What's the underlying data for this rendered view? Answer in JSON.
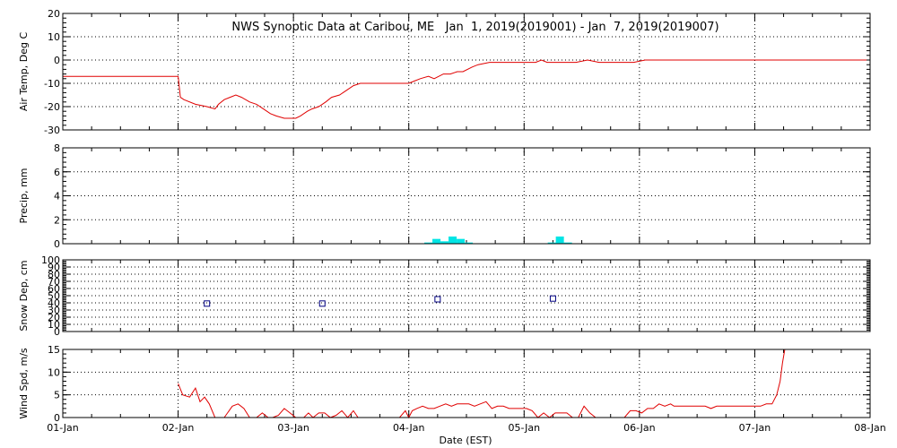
{
  "title": "NWS Synoptic Data at Caribou, ME   Jan  1, 2019(2019001) - Jan  7, 2019(2019007)",
  "chart_data": [
    {
      "type": "line",
      "ylabel": "Air Temp, Deg C",
      "ylim": [
        -30,
        20
      ],
      "yticks": [
        -30,
        -20,
        -10,
        0,
        10,
        20
      ],
      "grid": true,
      "color": "#e00000",
      "x": [
        0,
        0.6,
        1.0,
        1.02,
        1.05,
        1.15,
        1.25,
        1.32,
        1.35,
        1.4,
        1.45,
        1.5,
        1.55,
        1.62,
        1.68,
        1.74,
        1.8,
        1.85,
        1.92,
        1.98,
        2.02,
        2.06,
        2.12,
        2.16,
        2.22,
        2.28,
        2.33,
        2.4,
        2.46,
        2.52,
        2.58,
        2.65,
        2.75,
        2.85,
        2.95,
        3.0,
        3.05,
        3.1,
        3.17,
        3.22,
        3.3,
        3.36,
        3.42,
        3.47,
        3.55,
        3.6,
        3.7,
        3.8,
        3.9,
        4.0,
        4.05,
        4.1,
        4.15,
        4.2,
        4.25,
        4.35,
        4.45,
        4.55,
        4.65,
        4.7,
        4.75,
        4.85,
        4.95,
        5.05,
        5.15,
        5.25,
        5.35,
        5.45,
        5.55,
        5.65,
        5.75,
        5.9,
        5.98,
        6.0,
        6.05,
        6.3,
        6.6,
        6.97
      ],
      "y": [
        -7,
        -7,
        -7,
        -16,
        -17,
        -19,
        -20,
        -21,
        -19,
        -17,
        -16,
        -15,
        -16,
        -18,
        -19,
        -21,
        -23,
        -24,
        -25,
        -25,
        -25,
        -24,
        -22,
        -21,
        -20,
        -18,
        -16,
        -15,
        -13,
        -11,
        -10,
        -10,
        -10,
        -10,
        -10,
        -10,
        -9,
        -8,
        -7,
        -8,
        -6,
        -6,
        -5,
        -5,
        -3,
        -2,
        -1,
        -1,
        -1,
        -1,
        -1,
        -1,
        0,
        -1,
        -1,
        -1,
        -1,
        0,
        -1,
        -1,
        -1,
        -1,
        -1,
        0,
        0,
        0,
        0,
        0,
        0,
        0,
        0,
        0,
        0,
        0,
        0,
        0,
        0,
        0
      ]
    },
    {
      "type": "bar",
      "ylabel": "Precip, mm",
      "ylim": [
        0,
        8
      ],
      "yticks": [
        0,
        2,
        4,
        6,
        8
      ],
      "grid": true,
      "color": "#00e5e5",
      "x": [
        3.17,
        3.24,
        3.31,
        3.38,
        3.45,
        3.52,
        4.24,
        4.31,
        4.38
      ],
      "values": [
        0.1,
        0.4,
        0.2,
        0.6,
        0.4,
        0.1,
        0.1,
        0.6,
        0.1
      ]
    },
    {
      "type": "scatter",
      "ylabel": "Snow Dep, cm",
      "ylim": [
        0,
        100
      ],
      "yticks": [
        0,
        10,
        20,
        30,
        40,
        50,
        60,
        70,
        80,
        90,
        100
      ],
      "grid": true,
      "color": "#000080",
      "x": [
        1.25,
        2.25,
        3.25,
        4.25
      ],
      "y": [
        39,
        39,
        45,
        46
      ]
    },
    {
      "type": "line",
      "ylabel": "Wind Spd, m/s",
      "ylim": [
        0,
        15
      ],
      "yticks": [
        0,
        5,
        10,
        15
      ],
      "grid": true,
      "color": "#e00000",
      "x": [
        1.0,
        1.04,
        1.1,
        1.15,
        1.19,
        1.23,
        1.27,
        1.32,
        1.36,
        1.4,
        1.47,
        1.52,
        1.57,
        1.62,
        1.68,
        1.73,
        1.78,
        1.82,
        1.87,
        1.92,
        1.97,
        2.02,
        2.05,
        2.09,
        2.13,
        2.17,
        2.22,
        2.27,
        2.32,
        2.37,
        2.42,
        2.47,
        2.52,
        2.56,
        2.6,
        2.64,
        2.68,
        2.72,
        2.77,
        2.82,
        2.87,
        2.92,
        2.97,
        3.0,
        3.03,
        3.07,
        3.12,
        3.17,
        3.22,
        3.27,
        3.32,
        3.37,
        3.42,
        3.47,
        3.52,
        3.57,
        3.62,
        3.67,
        3.72,
        3.77,
        3.82,
        3.87,
        3.92,
        3.97,
        4.02,
        4.07,
        4.12,
        4.17,
        4.22,
        4.27,
        4.32,
        4.37,
        4.42,
        4.47,
        4.52,
        4.57,
        4.62,
        4.67,
        4.72,
        4.77,
        4.82,
        4.87,
        4.92,
        4.97,
        5.02,
        5.07,
        5.12,
        5.17,
        5.22,
        5.27,
        5.3,
        5.33,
        5.37,
        5.42,
        5.47,
        5.52,
        5.57,
        5.62,
        5.67,
        5.72,
        5.77,
        5.82,
        5.87,
        5.92,
        5.97,
        6.0,
        6.05,
        6.1,
        6.15,
        6.19,
        6.22,
        6.24,
        6.26
      ],
      "y": [
        7.5,
        5,
        4.5,
        6.5,
        3.5,
        4.5,
        3,
        0,
        0,
        0,
        2.5,
        3,
        2,
        0,
        0,
        1,
        0,
        0,
        0.5,
        2,
        1,
        0,
        0,
        0,
        1,
        0,
        1,
        1,
        0,
        0.5,
        1.5,
        0,
        1.5,
        0,
        0,
        0,
        0,
        0,
        0,
        0,
        0,
        0,
        1.5,
        0,
        1.5,
        2,
        2.5,
        2,
        2,
        2.5,
        3,
        2.5,
        3,
        3,
        3,
        2.5,
        3,
        3.5,
        2,
        2.5,
        2.5,
        2,
        2,
        2,
        2,
        1.5,
        0,
        1,
        0,
        1,
        1,
        1,
        0,
        0,
        2.5,
        1,
        0,
        0,
        0,
        0,
        0,
        0,
        1.5,
        1.5,
        1,
        2,
        2,
        3,
        2.5,
        3,
        2.5,
        2.5,
        2.5,
        2.5,
        2.5,
        2.5,
        2.5,
        2,
        2.5,
        2.5,
        2.5,
        2.5,
        2.5,
        2.5,
        2.5,
        2.5,
        2.5,
        3,
        3,
        5,
        8,
        12,
        15
      ]
    }
  ],
  "xaxis": {
    "label": "Date (EST)",
    "ticks": [
      "01-Jan",
      "02-Jan",
      "03-Jan",
      "04-Jan",
      "05-Jan",
      "06-Jan",
      "07-Jan",
      "08-Jan"
    ],
    "range": [
      0,
      7
    ]
  }
}
